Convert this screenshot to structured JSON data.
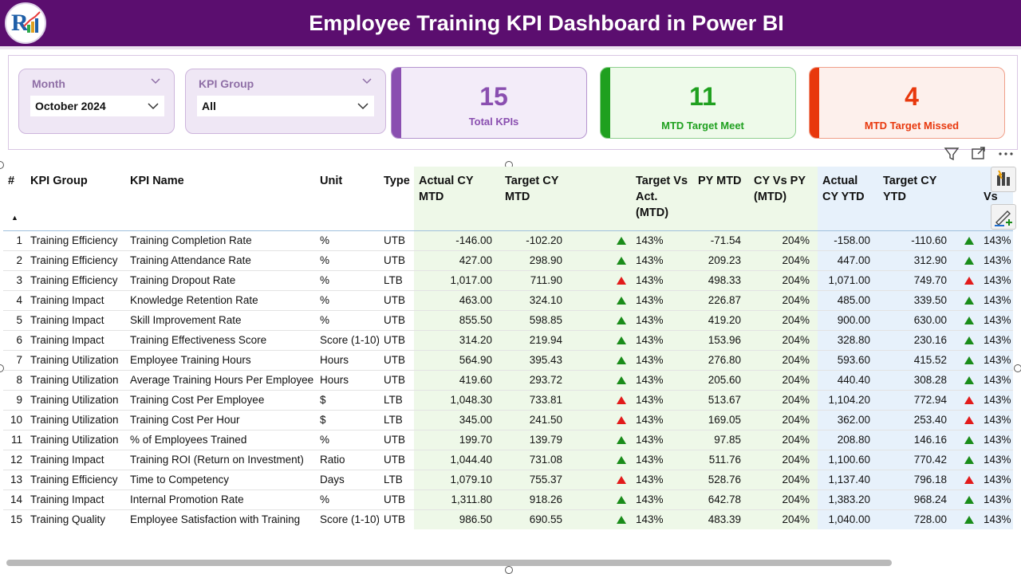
{
  "header": {
    "title": "Employee Training KPI Dashboard in Power BI"
  },
  "filters": {
    "month": {
      "label": "Month",
      "value": "October 2024"
    },
    "kpi_group": {
      "label": "KPI Group",
      "value": "All"
    }
  },
  "cards": {
    "total": {
      "value": "15",
      "label": "Total KPIs",
      "color": "#8a4fb0"
    },
    "meet": {
      "value": "11",
      "label": "MTD Target Meet",
      "color": "#1fa01f"
    },
    "missed": {
      "value": "4",
      "label": "MTD Target Missed",
      "color": "#e8380d"
    }
  },
  "table": {
    "columns": [
      "#",
      "KPI Group",
      "KPI Name",
      "Unit",
      "Type",
      "Actual CY MTD",
      "Target CY MTD",
      "",
      "Target Vs Act. (MTD)",
      "PY MTD",
      "CY Vs PY (MTD)",
      "Actual CY YTD",
      "Target CY YTD",
      "",
      "Vs"
    ],
    "rows": [
      {
        "n": "1",
        "group": "Training Efficiency",
        "name": "Training Completion Rate",
        "unit": "%",
        "type": "UTB",
        "act_mtd": "-146.00",
        "tgt_mtd": "-102.20",
        "mtd_icon": "up",
        "tva_mtd": "143%",
        "py_mtd": "-71.54",
        "cvp_mtd": "204%",
        "act_ytd": "-158.00",
        "tgt_ytd": "-110.60",
        "ytd_icon": "up",
        "tva_ytd": "143%"
      },
      {
        "n": "2",
        "group": "Training Efficiency",
        "name": "Training Attendance Rate",
        "unit": "%",
        "type": "UTB",
        "act_mtd": "427.00",
        "tgt_mtd": "298.90",
        "mtd_icon": "up",
        "tva_mtd": "143%",
        "py_mtd": "209.23",
        "cvp_mtd": "204%",
        "act_ytd": "447.00",
        "tgt_ytd": "312.90",
        "ytd_icon": "up",
        "tva_ytd": "143%"
      },
      {
        "n": "3",
        "group": "Training Efficiency",
        "name": "Training Dropout Rate",
        "unit": "%",
        "type": "LTB",
        "act_mtd": "1,017.00",
        "tgt_mtd": "711.90",
        "mtd_icon": "red",
        "tva_mtd": "143%",
        "py_mtd": "498.33",
        "cvp_mtd": "204%",
        "act_ytd": "1,071.00",
        "tgt_ytd": "749.70",
        "ytd_icon": "red",
        "tva_ytd": "143%"
      },
      {
        "n": "4",
        "group": "Training Impact",
        "name": "Knowledge Retention Rate",
        "unit": "%",
        "type": "UTB",
        "act_mtd": "463.00",
        "tgt_mtd": "324.10",
        "mtd_icon": "up",
        "tva_mtd": "143%",
        "py_mtd": "226.87",
        "cvp_mtd": "204%",
        "act_ytd": "485.00",
        "tgt_ytd": "339.50",
        "ytd_icon": "up",
        "tva_ytd": "143%"
      },
      {
        "n": "5",
        "group": "Training Impact",
        "name": "Skill Improvement Rate",
        "unit": "%",
        "type": "UTB",
        "act_mtd": "855.50",
        "tgt_mtd": "598.85",
        "mtd_icon": "up",
        "tva_mtd": "143%",
        "py_mtd": "419.20",
        "cvp_mtd": "204%",
        "act_ytd": "900.00",
        "tgt_ytd": "630.00",
        "ytd_icon": "up",
        "tva_ytd": "143%"
      },
      {
        "n": "6",
        "group": "Training Impact",
        "name": "Training Effectiveness Score",
        "unit": "Score (1-10)",
        "type": "UTB",
        "act_mtd": "314.20",
        "tgt_mtd": "219.94",
        "mtd_icon": "up",
        "tva_mtd": "143%",
        "py_mtd": "153.96",
        "cvp_mtd": "204%",
        "act_ytd": "328.80",
        "tgt_ytd": "230.16",
        "ytd_icon": "up",
        "tva_ytd": "143%"
      },
      {
        "n": "7",
        "group": "Training Utilization",
        "name": "Employee Training Hours",
        "unit": "Hours",
        "type": "UTB",
        "act_mtd": "564.90",
        "tgt_mtd": "395.43",
        "mtd_icon": "up",
        "tva_mtd": "143%",
        "py_mtd": "276.80",
        "cvp_mtd": "204%",
        "act_ytd": "593.60",
        "tgt_ytd": "415.52",
        "ytd_icon": "up",
        "tva_ytd": "143%"
      },
      {
        "n": "8",
        "group": "Training Utilization",
        "name": "Average Training Hours Per Employee",
        "unit": "Hours",
        "type": "UTB",
        "act_mtd": "419.60",
        "tgt_mtd": "293.72",
        "mtd_icon": "up",
        "tva_mtd": "143%",
        "py_mtd": "205.60",
        "cvp_mtd": "204%",
        "act_ytd": "440.40",
        "tgt_ytd": "308.28",
        "ytd_icon": "up",
        "tva_ytd": "143%"
      },
      {
        "n": "9",
        "group": "Training Utilization",
        "name": "Training Cost Per Employee",
        "unit": "$",
        "type": "LTB",
        "act_mtd": "1,048.30",
        "tgt_mtd": "733.81",
        "mtd_icon": "red",
        "tva_mtd": "143%",
        "py_mtd": "513.67",
        "cvp_mtd": "204%",
        "act_ytd": "1,104.20",
        "tgt_ytd": "772.94",
        "ytd_icon": "red",
        "tva_ytd": "143%"
      },
      {
        "n": "10",
        "group": "Training Utilization",
        "name": "Training Cost Per Hour",
        "unit": "$",
        "type": "LTB",
        "act_mtd": "345.00",
        "tgt_mtd": "241.50",
        "mtd_icon": "red",
        "tva_mtd": "143%",
        "py_mtd": "169.05",
        "cvp_mtd": "204%",
        "act_ytd": "362.00",
        "tgt_ytd": "253.40",
        "ytd_icon": "red",
        "tva_ytd": "143%"
      },
      {
        "n": "11",
        "group": "Training Utilization",
        "name": "% of Employees Trained",
        "unit": "%",
        "type": "UTB",
        "act_mtd": "199.70",
        "tgt_mtd": "139.79",
        "mtd_icon": "up",
        "tva_mtd": "143%",
        "py_mtd": "97.85",
        "cvp_mtd": "204%",
        "act_ytd": "208.80",
        "tgt_ytd": "146.16",
        "ytd_icon": "up",
        "tva_ytd": "143%"
      },
      {
        "n": "12",
        "group": "Training Impact",
        "name": "Training ROI (Return on Investment)",
        "unit": "Ratio",
        "type": "UTB",
        "act_mtd": "1,044.40",
        "tgt_mtd": "731.08",
        "mtd_icon": "up",
        "tva_mtd": "143%",
        "py_mtd": "511.76",
        "cvp_mtd": "204%",
        "act_ytd": "1,100.60",
        "tgt_ytd": "770.42",
        "ytd_icon": "up",
        "tva_ytd": "143%"
      },
      {
        "n": "13",
        "group": "Training Efficiency",
        "name": "Time to Competency",
        "unit": "Days",
        "type": "LTB",
        "act_mtd": "1,079.10",
        "tgt_mtd": "755.37",
        "mtd_icon": "red",
        "tva_mtd": "143%",
        "py_mtd": "528.76",
        "cvp_mtd": "204%",
        "act_ytd": "1,137.40",
        "tgt_ytd": "796.18",
        "ytd_icon": "red",
        "tva_ytd": "143%"
      },
      {
        "n": "14",
        "group": "Training Impact",
        "name": "Internal Promotion Rate",
        "unit": "%",
        "type": "UTB",
        "act_mtd": "1,311.80",
        "tgt_mtd": "918.26",
        "mtd_icon": "up",
        "tva_mtd": "143%",
        "py_mtd": "642.78",
        "cvp_mtd": "204%",
        "act_ytd": "1,383.20",
        "tgt_ytd": "968.24",
        "ytd_icon": "up",
        "tva_ytd": "143%"
      },
      {
        "n": "15",
        "group": "Training Quality",
        "name": "Employee Satisfaction with Training",
        "unit": "Score (1-10)",
        "type": "UTB",
        "act_mtd": "986.50",
        "tgt_mtd": "690.55",
        "mtd_icon": "up",
        "tva_mtd": "143%",
        "py_mtd": "483.39",
        "cvp_mtd": "204%",
        "act_ytd": "1,040.00",
        "tgt_ytd": "728.00",
        "ytd_icon": "up",
        "tva_ytd": "143%"
      }
    ]
  },
  "icons": {
    "logo": "logo-icon",
    "filter": "filter-icon",
    "focus": "focus-mode-icon",
    "more": "more-options-icon",
    "smart_narrative": "smart-narrative-icon",
    "format": "format-painter-icon"
  },
  "colors": {
    "header_bg": "#5b0e6f",
    "up": "#1a8c1a",
    "down": "#e21b1b",
    "mtd_bg": "#eef8e8",
    "ytd_bg": "#e7f1fb"
  }
}
